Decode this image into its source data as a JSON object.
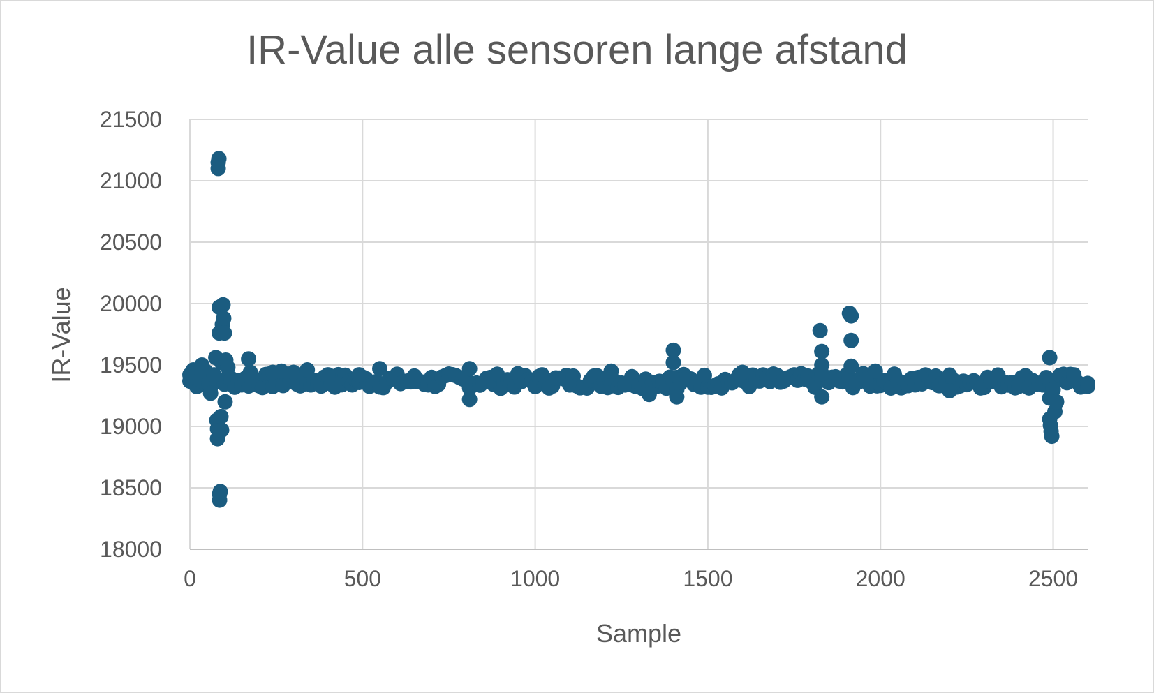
{
  "chart_data": {
    "type": "scatter",
    "title": "IR-Value alle sensoren lange afstand",
    "xlabel": "Sample",
    "ylabel": "IR-Value",
    "xlim": [
      0,
      2600
    ],
    "ylim": [
      18000,
      21500
    ],
    "x_ticks": [
      "0",
      "500",
      "1000",
      "1500",
      "2000",
      "2500"
    ],
    "y_ticks": [
      "18000",
      "18500",
      "19000",
      "19500",
      "20000",
      "20500",
      "21000",
      "21500"
    ],
    "grid": true,
    "legend": "none",
    "marker_color": "#1b5c80",
    "baseline_value": 19370,
    "baseline_noise": 60,
    "series": [
      {
        "points": [
          [
            0,
            19420
          ],
          [
            10,
            19460
          ],
          [
            20,
            19400
          ],
          [
            30,
            19380
          ],
          [
            35,
            19500
          ],
          [
            45,
            19450
          ],
          [
            55,
            19350
          ],
          [
            60,
            19270
          ],
          [
            70,
            19420
          ],
          [
            75,
            19560
          ],
          [
            78,
            19050
          ],
          [
            80,
            18900
          ],
          [
            80,
            18980
          ],
          [
            82,
            21100
          ],
          [
            82,
            21150
          ],
          [
            84,
            21180
          ],
          [
            85,
            19970
          ],
          [
            85,
            19760
          ],
          [
            86,
            18400
          ],
          [
            86,
            18450
          ],
          [
            88,
            18470
          ],
          [
            90,
            19080
          ],
          [
            92,
            18970
          ],
          [
            92,
            19520
          ],
          [
            94,
            19830
          ],
          [
            96,
            19990
          ],
          [
            98,
            19880
          ],
          [
            100,
            19760
          ],
          [
            102,
            19200
          ],
          [
            104,
            19540
          ],
          [
            110,
            19480
          ],
          [
            170,
            19550
          ],
          [
            175,
            19440
          ],
          [
            240,
            19440
          ],
          [
            265,
            19450
          ],
          [
            300,
            19440
          ],
          [
            340,
            19460
          ],
          [
            400,
            19420
          ],
          [
            490,
            19420
          ],
          [
            550,
            19470
          ],
          [
            810,
            19470
          ],
          [
            810,
            19220
          ],
          [
            1020,
            19420
          ],
          [
            1220,
            19450
          ],
          [
            1330,
            19260
          ],
          [
            1400,
            19620
          ],
          [
            1400,
            19520
          ],
          [
            1410,
            19300
          ],
          [
            1410,
            19240
          ],
          [
            1600,
            19440
          ],
          [
            1825,
            19780
          ],
          [
            1830,
            19610
          ],
          [
            1830,
            19500
          ],
          [
            1830,
            19430
          ],
          [
            1830,
            19240
          ],
          [
            1910,
            19920
          ],
          [
            1915,
            19900
          ],
          [
            1915,
            19700
          ],
          [
            1915,
            19490
          ],
          [
            1985,
            19450
          ],
          [
            2200,
            19290
          ],
          [
            2490,
            19560
          ],
          [
            2490,
            19230
          ],
          [
            2490,
            19060
          ],
          [
            2492,
            19010
          ],
          [
            2494,
            18960
          ],
          [
            2496,
            18920
          ],
          [
            2500,
            19300
          ],
          [
            2505,
            19120
          ],
          [
            2510,
            19200
          ],
          [
            2560,
            19420
          ],
          [
            2600,
            19350
          ]
        ]
      }
    ]
  }
}
